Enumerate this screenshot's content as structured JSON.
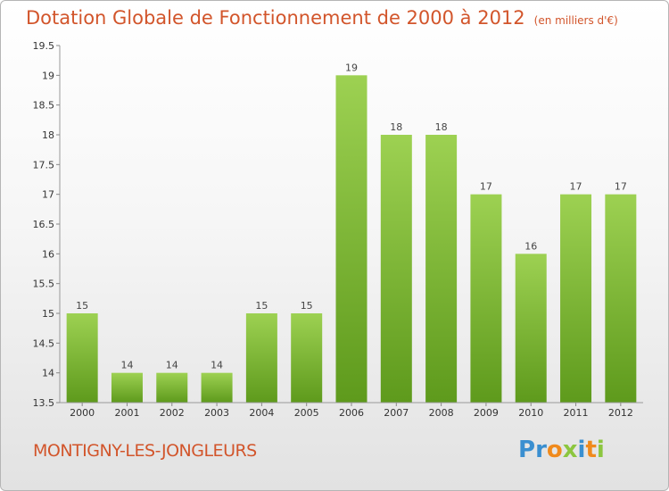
{
  "title": "Dotation Globale de Fonctionnement de 2000 à 2012",
  "unit_note": "(en milliers d'€)",
  "commune": "MONTIGNY-LES-JONGLEURS",
  "logo": {
    "letters": [
      "P",
      "r",
      "o",
      "x",
      "i",
      "t",
      "i"
    ],
    "colors": [
      "#3a8fd0",
      "#3a8fd0",
      "#f08a1c",
      "#8cc63f",
      "#3a8fd0",
      "#f08a1c",
      "#8cc63f"
    ]
  },
  "colors": {
    "bar_top": "#9dd152",
    "bar_bottom": "#5e9a1c",
    "title": "#d2552b"
  },
  "chart_data": {
    "type": "bar",
    "categories": [
      "2000",
      "2001",
      "2002",
      "2003",
      "2004",
      "2005",
      "2006",
      "2007",
      "2008",
      "2009",
      "2010",
      "2011",
      "2012"
    ],
    "values": [
      15,
      14,
      14,
      14,
      15,
      15,
      19,
      18,
      18,
      17,
      16,
      17,
      17
    ],
    "ylim": [
      13.5,
      19.5
    ],
    "yticks": [
      "13.5",
      "14",
      "14.5",
      "15",
      "15.5",
      "16",
      "16.5",
      "17",
      "17.5",
      "18",
      "18.5",
      "19",
      "19.5"
    ],
    "grid": false,
    "legend": false
  }
}
